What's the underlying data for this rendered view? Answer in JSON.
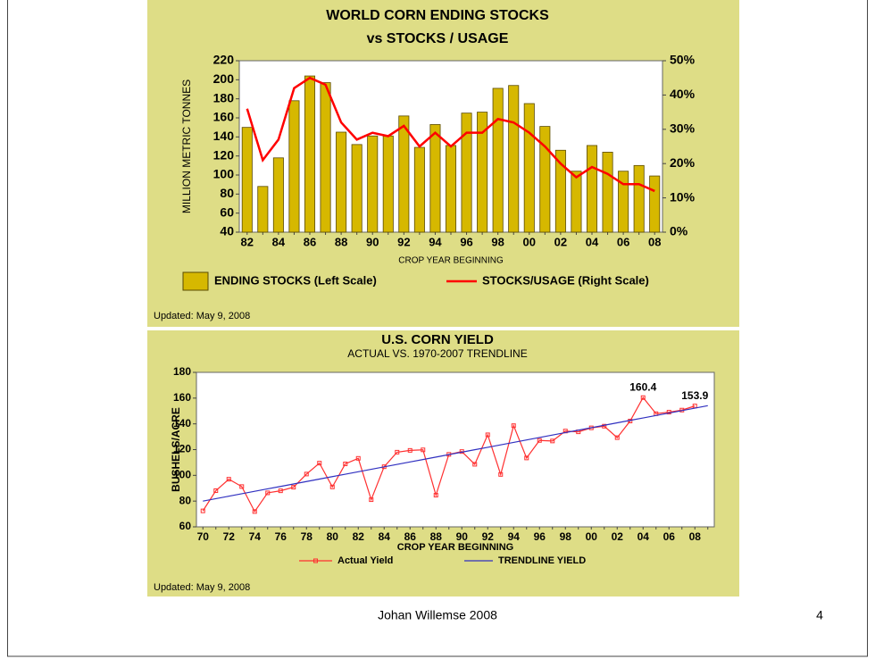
{
  "chart_data": [
    {
      "type": "bar",
      "title": "WORLD CORN ENDING STOCKS",
      "subtitle": "vs STOCKS / USAGE",
      "ylabel": "MILLION METRIC TONNES",
      "xlabel": "CROP YEAR BEGINNING",
      "note": "Updated: May 9, 2008",
      "categories": [
        "82",
        null,
        "84",
        null,
        "86",
        null,
        "88",
        null,
        "90",
        null,
        "92",
        null,
        "94",
        null,
        "96",
        null,
        "98",
        null,
        "00",
        null,
        "02",
        null,
        "04",
        null,
        "06",
        null,
        "08"
      ],
      "series": [
        {
          "name": "ENDING STOCKS (Left Scale)",
          "type": "bar",
          "color": "#d6b800",
          "values": [
            150,
            88,
            118,
            178,
            204,
            197,
            145,
            132,
            141,
            141,
            162,
            129,
            153,
            131,
            165,
            166,
            191,
            194,
            175,
            151,
            126,
            104,
            131,
            124,
            104,
            110,
            99
          ]
        },
        {
          "name": "STOCKS/USAGE (Right Scale)",
          "type": "line",
          "axis": "y2",
          "color": "#ff0000",
          "values": [
            36,
            21,
            27,
            42,
            45,
            43,
            32,
            27,
            29,
            28,
            31,
            25,
            29,
            25,
            29,
            29,
            33,
            32,
            29,
            25,
            20,
            16,
            19,
            17,
            14,
            14,
            12
          ]
        }
      ],
      "ylim": [
        40,
        220
      ],
      "yticks": [
        40,
        60,
        80,
        100,
        120,
        140,
        160,
        180,
        200,
        220
      ],
      "y2lim": [
        0,
        50
      ],
      "y2ticks": [
        {
          "value": 0,
          "label": "0%"
        },
        {
          "value": 10,
          "label": "10%"
        },
        {
          "value": 20,
          "label": "20%"
        },
        {
          "value": 30,
          "label": "30%"
        },
        {
          "value": 40,
          "label": "40%"
        },
        {
          "value": 50,
          "label": "50%"
        }
      ],
      "grid": false
    },
    {
      "type": "line",
      "title": "U.S. CORN YIELD",
      "subtitle": "ACTUAL VS. 1970-2007 TRENDLINE",
      "ylabel": "BUSHELS/ACRE",
      "xlabel": "CROP YEAR BEGINNING",
      "note": "Updated: May 9, 2008",
      "categories": [
        "70",
        null,
        "72",
        null,
        "74",
        null,
        "76",
        null,
        "78",
        null,
        "80",
        null,
        "82",
        null,
        "84",
        null,
        "86",
        null,
        "88",
        null,
        "90",
        null,
        "92",
        null,
        "94",
        null,
        "96",
        null,
        "98",
        null,
        "00",
        null,
        "02",
        null,
        "04",
        null,
        "06",
        null,
        "08",
        null
      ],
      "series": [
        {
          "name": "Actual Yield",
          "type": "line",
          "color": "#ff3030",
          "marker": "square",
          "values": [
            72.4,
            88.1,
            97.0,
            91.3,
            71.9,
            86.4,
            88.0,
            90.8,
            101.0,
            109.5,
            91.0,
            108.9,
            113.2,
            81.1,
            106.7,
            118.0,
            119.4,
            119.8,
            84.6,
            116.3,
            118.5,
            108.6,
            131.5,
            100.7,
            138.6,
            113.5,
            127.1,
            126.7,
            134.4,
            133.8,
            136.9,
            138.2,
            129.3,
            142.2,
            160.4,
            147.9,
            149.1,
            150.7,
            153.9,
            null
          ],
          "value_labels": [
            null,
            null,
            null,
            null,
            null,
            null,
            null,
            null,
            null,
            null,
            null,
            null,
            null,
            null,
            null,
            null,
            null,
            null,
            null,
            null,
            null,
            null,
            null,
            null,
            null,
            null,
            null,
            null,
            null,
            null,
            null,
            null,
            null,
            null,
            "160.4",
            null,
            null,
            null,
            "153.9",
            null
          ]
        },
        {
          "name": "TRENDLINE YIELD",
          "type": "line",
          "color": "#3030c0",
          "values": [
            80,
            81.9,
            83.8,
            85.7,
            87.6,
            89.5,
            91.4,
            93.3,
            95.2,
            97.1,
            99,
            100.9,
            102.8,
            104.7,
            106.6,
            108.5,
            110.4,
            112.3,
            114.2,
            116.1,
            118,
            119.9,
            121.8,
            123.7,
            125.6,
            127.5,
            129.4,
            131.3,
            133.2,
            135.1,
            137,
            138.9,
            140.8,
            142.7,
            144.6,
            146.5,
            148.4,
            150.3,
            152.2,
            154.1
          ]
        }
      ],
      "ylim": [
        60,
        180
      ],
      "yticks": [
        60,
        80,
        100,
        120,
        140,
        160,
        180
      ],
      "grid": false
    }
  ],
  "footer": {
    "author": "Johan Willemse 2008",
    "page": "4"
  }
}
